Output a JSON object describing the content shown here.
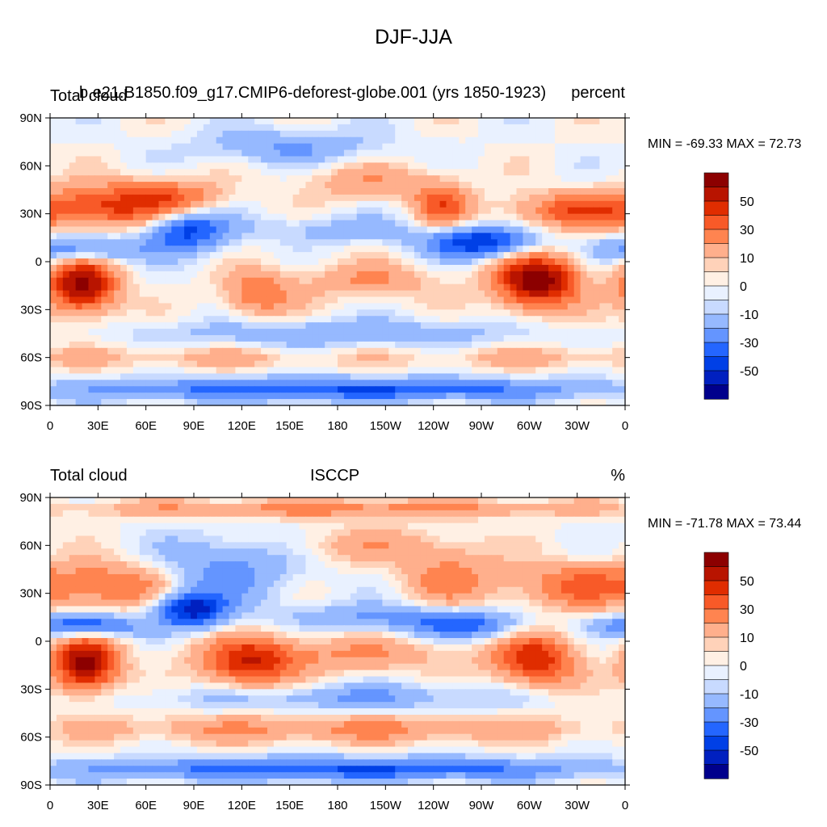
{
  "figure": {
    "title": "DJF-JJA"
  },
  "colors": [
    "#00008c",
    "#0020c0",
    "#0040e6",
    "#2466ff",
    "#6495ff",
    "#96b9ff",
    "#c8daff",
    "#e9f1ff",
    "#fff0e4",
    "#ffd2b9",
    "#ffaf8c",
    "#ff8450",
    "#f85a28",
    "#e02d00",
    "#b81400",
    "#8c0000"
  ],
  "chart_data": [
    {
      "type": "heatmap",
      "chart_kind": "global filled-contour map",
      "left_title": "Total cloud",
      "center_title": "b.e21.B1850.f09_g17.CMIP6-deforest-globe.001 (yrs 1850-1923)",
      "right_title": "percent",
      "min_max_label": "MIN = -69.33 MAX =  72.73",
      "min": -69.33,
      "max": 72.73,
      "x_tick_labels": [
        "0",
        "30E",
        "60E",
        "90E",
        "120E",
        "150E",
        "180",
        "150W",
        "120W",
        "90W",
        "60W",
        "30W",
        "0"
      ],
      "y_tick_labels": [
        "90N",
        "60N",
        "30N",
        "0",
        "30S",
        "60S",
        "90S"
      ],
      "xlim": [
        0,
        360
      ],
      "ylim": [
        -90,
        90
      ],
      "colorbar_labels": [
        "50",
        "30",
        "10",
        "0",
        "-10",
        "-30",
        "-50"
      ],
      "contour_levels": [
        -60,
        -50,
        -40,
        -30,
        -20,
        -10,
        -5,
        0,
        5,
        10,
        20,
        30,
        40,
        50,
        60
      ],
      "features": [
        {
          "lon": 20,
          "lat": -15,
          "value": 65,
          "sx": 15,
          "sy": 12
        },
        {
          "lon": 305,
          "lat": -12,
          "value": 70,
          "sx": 18,
          "sy": 12
        },
        {
          "lon": 40,
          "lat": 35,
          "value": 40,
          "sx": 30,
          "sy": 10
        },
        {
          "lon": 80,
          "lat": 40,
          "value": 25,
          "sx": 20,
          "sy": 8
        },
        {
          "lon": 85,
          "lat": 20,
          "value": -45,
          "sx": 18,
          "sy": 10
        },
        {
          "lon": 20,
          "lat": 8,
          "value": -35,
          "sx": 25,
          "sy": 6
        },
        {
          "lon": 270,
          "lat": 12,
          "value": -50,
          "sx": 25,
          "sy": 7
        },
        {
          "lon": 245,
          "lat": 35,
          "value": 35,
          "sx": 12,
          "sy": 10
        },
        {
          "lon": 330,
          "lat": 32,
          "value": 35,
          "sx": 30,
          "sy": 8
        },
        {
          "lon": 130,
          "lat": -20,
          "value": 30,
          "sx": 15,
          "sy": 10
        },
        {
          "lon": 200,
          "lat": -12,
          "value": 20,
          "sx": 30,
          "sy": 8
        },
        {
          "lon": 180,
          "lat": 20,
          "value": -15,
          "sx": 40,
          "sy": 6
        },
        {
          "lon": 200,
          "lat": 50,
          "value": 18,
          "sx": 30,
          "sy": 8
        },
        {
          "lon": 150,
          "lat": 72,
          "value": -20,
          "sx": 40,
          "sy": 8
        },
        {
          "lon": 180,
          "lat": -45,
          "value": -20,
          "sx": 80,
          "sy": 6
        },
        {
          "lon": 180,
          "lat": -80,
          "value": -40,
          "sx": 120,
          "sy": 5
        },
        {
          "lon": 100,
          "lat": -60,
          "value": 12,
          "sx": 60,
          "sy": 5
        },
        {
          "lon": 300,
          "lat": -60,
          "value": 12,
          "sx": 60,
          "sy": 5
        }
      ]
    },
    {
      "type": "heatmap",
      "chart_kind": "global filled-contour map",
      "left_title": "Total cloud",
      "center_title": "ISCCP",
      "right_title": "%",
      "min_max_label": "MIN = -71.78 MAX =  73.44",
      "min": -71.78,
      "max": 73.44,
      "x_tick_labels": [
        "0",
        "30E",
        "60E",
        "90E",
        "120E",
        "150E",
        "180",
        "150W",
        "120W",
        "90W",
        "60W",
        "30W",
        "0"
      ],
      "y_tick_labels": [
        "90N",
        "60N",
        "30N",
        "0",
        "30S",
        "60S",
        "90S"
      ],
      "xlim": [
        0,
        360
      ],
      "ylim": [
        -90,
        90
      ],
      "colorbar_labels": [
        "50",
        "30",
        "10",
        "0",
        "-10",
        "-30",
        "-50"
      ],
      "contour_levels": [
        -60,
        -50,
        -40,
        -30,
        -20,
        -10,
        -5,
        0,
        5,
        10,
        20,
        30,
        40,
        50,
        60
      ],
      "features": [
        {
          "lon": 22,
          "lat": -15,
          "value": 65,
          "sx": 14,
          "sy": 12
        },
        {
          "lon": 305,
          "lat": -12,
          "value": 45,
          "sx": 18,
          "sy": 12
        },
        {
          "lon": 40,
          "lat": 35,
          "value": 30,
          "sx": 30,
          "sy": 10
        },
        {
          "lon": 88,
          "lat": 20,
          "value": -55,
          "sx": 15,
          "sy": 8
        },
        {
          "lon": 20,
          "lat": 10,
          "value": -45,
          "sx": 25,
          "sy": 5
        },
        {
          "lon": 110,
          "lat": 45,
          "value": -25,
          "sx": 30,
          "sy": 15
        },
        {
          "lon": 125,
          "lat": -15,
          "value": 40,
          "sx": 20,
          "sy": 12
        },
        {
          "lon": 260,
          "lat": 10,
          "value": -35,
          "sx": 25,
          "sy": 6
        },
        {
          "lon": 250,
          "lat": 40,
          "value": 25,
          "sx": 20,
          "sy": 12
        },
        {
          "lon": 330,
          "lat": 35,
          "value": 30,
          "sx": 30,
          "sy": 10
        },
        {
          "lon": 180,
          "lat": -8,
          "value": 20,
          "sx": 60,
          "sy": 8
        },
        {
          "lon": 200,
          "lat": 15,
          "value": -20,
          "sx": 40,
          "sy": 6
        },
        {
          "lon": 180,
          "lat": 83,
          "value": 25,
          "sx": 120,
          "sy": 4
        },
        {
          "lon": 180,
          "lat": -80,
          "value": -40,
          "sx": 120,
          "sy": 5
        },
        {
          "lon": 180,
          "lat": -55,
          "value": 22,
          "sx": 120,
          "sy": 6
        },
        {
          "lon": 180,
          "lat": -35,
          "value": -20,
          "sx": 80,
          "sy": 6
        },
        {
          "lon": 200,
          "lat": 60,
          "value": 15,
          "sx": 40,
          "sy": 8
        }
      ]
    }
  ]
}
